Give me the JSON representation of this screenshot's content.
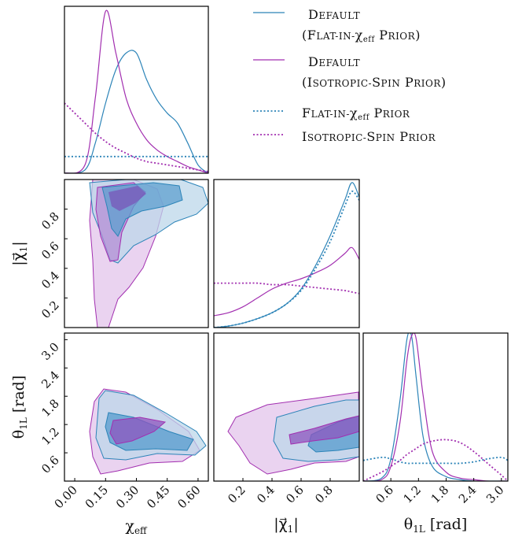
{
  "colors": {
    "blue": "#2c84b8",
    "purple": "#a22fb0",
    "blue_fill_1": "#bcd7ea",
    "blue_fill_2": "#5d9fcf",
    "purple_fill_1": "#ead3f0",
    "purple_fill_2": "#8e56bf"
  },
  "legend": [
    {
      "line": [
        "Default",
        "(Flat-in-χeff Prior)"
      ],
      "color": "#2c84b8",
      "style": "solid"
    },
    {
      "line": [
        "Default",
        "(Isotropic-Spin Prior)"
      ],
      "color": "#a22fb0",
      "style": "solid"
    },
    {
      "line": [
        "Flat-in-χeff Prior"
      ],
      "color": "#2c84b8",
      "style": "dotted"
    },
    {
      "line": [
        "Isotropic-Spin Prior"
      ],
      "color": "#a22fb0",
      "style": "dotted"
    }
  ],
  "chart_data": [
    {
      "type": "line",
      "panel": "chi_eff marginal",
      "x": [
        -0.05,
        0.05,
        0.1,
        0.15,
        0.2,
        0.25,
        0.3,
        0.35,
        0.4,
        0.45,
        0.5,
        0.55,
        0.6,
        0.65
      ],
      "series": [
        {
          "name": "Default (Flat-in-χeff Prior)",
          "values": [
            0.0,
            0.02,
            0.18,
            0.42,
            0.62,
            0.72,
            0.72,
            0.56,
            0.44,
            0.36,
            0.3,
            0.18,
            0.05,
            0.0
          ]
        },
        {
          "name": "Default (Isotropic-Spin Prior)",
          "values": [
            0.0,
            0.05,
            0.45,
            0.97,
            0.72,
            0.45,
            0.3,
            0.2,
            0.14,
            0.1,
            0.07,
            0.04,
            0.02,
            0.0
          ]
        },
        {
          "name": "Flat-in-χeff Prior",
          "values": [
            0.1,
            0.1,
            0.1,
            0.1,
            0.1,
            0.1,
            0.1,
            0.1,
            0.1,
            0.1,
            0.1,
            0.1,
            0.1,
            0.1
          ]
        },
        {
          "name": "Isotropic-Spin Prior",
          "values": [
            0.42,
            0.3,
            0.24,
            0.19,
            0.15,
            0.12,
            0.09,
            0.07,
            0.06,
            0.05,
            0.04,
            0.03,
            0.02,
            0.01
          ]
        }
      ]
    },
    {
      "type": "line",
      "panel": "|chi1| marginal",
      "x": [
        0.0,
        0.1,
        0.2,
        0.3,
        0.4,
        0.5,
        0.6,
        0.7,
        0.8,
        0.9,
        0.95,
        1.0
      ],
      "series": [
        {
          "name": "Default (Flat-in-χeff Prior)",
          "values": [
            0.0,
            0.01,
            0.03,
            0.06,
            0.1,
            0.16,
            0.26,
            0.42,
            0.62,
            0.86,
            0.98,
            0.88
          ]
        },
        {
          "name": "Default (Isotropic-Spin Prior)",
          "values": [
            0.08,
            0.1,
            0.14,
            0.2,
            0.26,
            0.3,
            0.33,
            0.37,
            0.42,
            0.5,
            0.54,
            0.46
          ]
        },
        {
          "name": "Flat-in-χeff Prior",
          "values": [
            0.0,
            0.01,
            0.03,
            0.06,
            0.1,
            0.16,
            0.25,
            0.4,
            0.58,
            0.82,
            0.92,
            0.86
          ]
        },
        {
          "name": "Isotropic-Spin Prior",
          "values": [
            0.3,
            0.3,
            0.3,
            0.3,
            0.29,
            0.29,
            0.28,
            0.27,
            0.26,
            0.25,
            0.24,
            0.23
          ]
        }
      ]
    },
    {
      "type": "line",
      "panel": "theta_1L marginal",
      "x": [
        0.0,
        0.4,
        0.6,
        0.8,
        0.95,
        1.05,
        1.15,
        1.3,
        1.5,
        1.8,
        2.1,
        2.4,
        2.7,
        3.0,
        3.14
      ],
      "series": [
        {
          "name": "Default (Flat-in-χeff Prior)",
          "values": [
            0.0,
            0.02,
            0.15,
            0.55,
            0.96,
            0.98,
            0.7,
            0.3,
            0.1,
            0.03,
            0.01,
            0.0,
            0.0,
            0.0,
            0.0
          ]
        },
        {
          "name": "Default (Isotropic-Spin Prior)",
          "values": [
            0.0,
            0.01,
            0.1,
            0.4,
            0.82,
            0.98,
            0.96,
            0.58,
            0.2,
            0.06,
            0.02,
            0.01,
            0.0,
            0.0,
            0.0
          ]
        },
        {
          "name": "Flat-in-χeff Prior",
          "values": [
            0.14,
            0.16,
            0.15,
            0.13,
            0.12,
            0.12,
            0.12,
            0.12,
            0.12,
            0.12,
            0.12,
            0.13,
            0.15,
            0.16,
            0.14
          ]
        },
        {
          "name": "Isotropic-Spin Prior",
          "values": [
            0.0,
            0.06,
            0.1,
            0.14,
            0.18,
            0.2,
            0.22,
            0.25,
            0.27,
            0.28,
            0.26,
            0.2,
            0.12,
            0.04,
            0.0
          ]
        }
      ]
    }
  ],
  "axes": {
    "xlabel_chi_eff": "χeff",
    "xlabel_chi1": "|χ⃗1|",
    "xlabel_theta": "θ1L [rad]",
    "ylabel_chi1": "|χ⃗1|",
    "ylabel_theta": "θ1L [rad]",
    "chi_eff_ticks": [
      "0.00",
      "0.15",
      "0.30",
      "0.45",
      "0.60"
    ],
    "chi1_ticks": [
      "0.2",
      "0.4",
      "0.6",
      "0.8"
    ],
    "theta_ticks": [
      "0.6",
      "1.2",
      "1.8",
      "2.4",
      "3.0"
    ],
    "chi_eff_range": [
      -0.05,
      0.65
    ],
    "chi1_range": [
      0.0,
      1.0
    ],
    "theta_range": [
      0.0,
      3.14
    ]
  }
}
